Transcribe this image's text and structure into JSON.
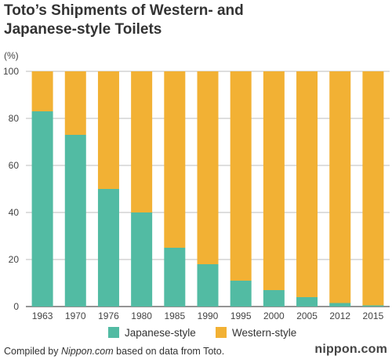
{
  "header": {
    "title_line1": "Toto’s Shipments of Western- and",
    "title_line2": "Japanese-style Toilets"
  },
  "footer": {
    "prefix": "Compiled by ",
    "source": "Nippon.com",
    "suffix": " based on data from Toto.",
    "logo": "nippon.com"
  },
  "chart_data": {
    "type": "bar",
    "stacked": true,
    "unit_label": "(%)",
    "categories": [
      "1963",
      "1970",
      "1976",
      "1980",
      "1985",
      "1990",
      "1995",
      "2000",
      "2005",
      "2012",
      "2015"
    ],
    "series": [
      {
        "name": "Japanese-style",
        "color": "#52bba3",
        "values": [
          83,
          73,
          50,
          40,
          25,
          18,
          11,
          7,
          4,
          1.5,
          0.5
        ]
      },
      {
        "name": "Western-style",
        "color": "#f2b134",
        "values": [
          17,
          27,
          50,
          60,
          75,
          82,
          89,
          93,
          96,
          98.5,
          99.5
        ]
      }
    ],
    "ylim": [
      0,
      100
    ],
    "yticks": [
      0,
      20,
      40,
      60,
      80,
      100
    ],
    "grid": true,
    "legend_position": "bottom"
  }
}
